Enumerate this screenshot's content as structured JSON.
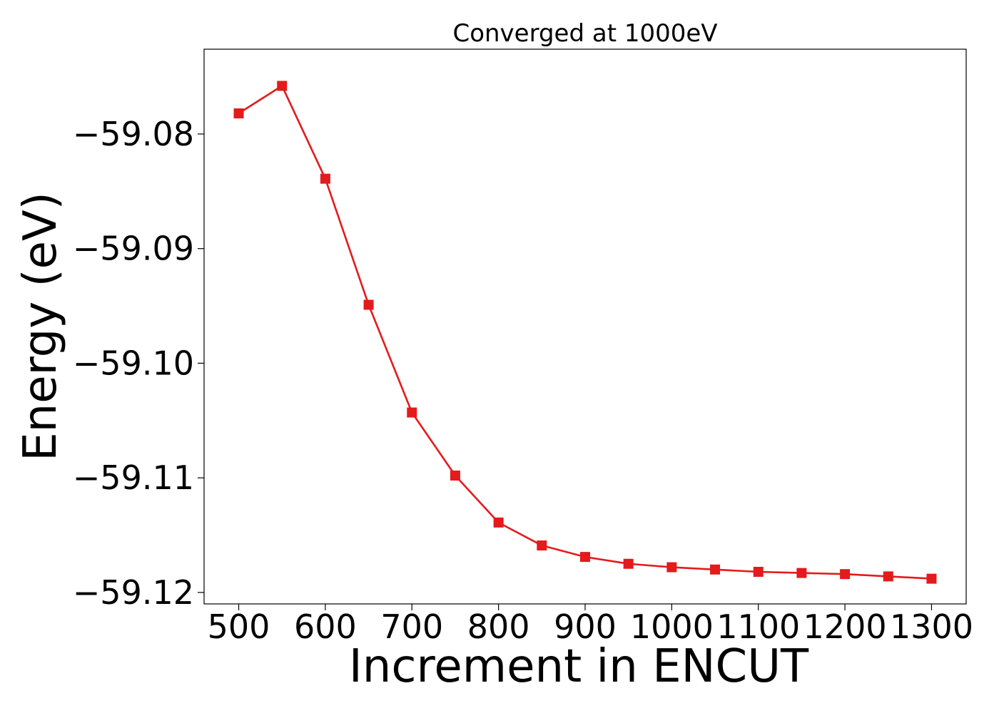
{
  "chart_data": {
    "type": "line",
    "title": "Converged at 1000eV",
    "xlabel": "Increment in ENCUT",
    "ylabel": "Energy (eV)",
    "xlim": [
      460,
      1340
    ],
    "ylim": [
      -59.121,
      -59.0726
    ],
    "xticks": [
      500,
      600,
      700,
      800,
      900,
      1000,
      1100,
      1200,
      1300
    ],
    "xtick_labels": [
      "500",
      "600",
      "700",
      "800",
      "900",
      "1000",
      "1100",
      "1200",
      "1300"
    ],
    "yticks": [
      -59.08,
      -59.09,
      -59.1,
      -59.11,
      -59.12
    ],
    "ytick_labels": [
      "−59.08",
      "−59.09",
      "−59.10",
      "−59.11",
      "−59.12"
    ],
    "grid": false,
    "legend": "none",
    "series": [
      {
        "color": "#e41a1c",
        "marker": "square",
        "x": [
          500,
          550,
          600,
          650,
          700,
          750,
          800,
          850,
          900,
          950,
          1000,
          1050,
          1100,
          1150,
          1200,
          1250,
          1300
        ],
        "y": [
          -59.0782,
          -59.0758,
          -59.0839,
          -59.0949,
          -59.1043,
          -59.1098,
          -59.1139,
          -59.1159,
          -59.1169,
          -59.1175,
          -59.1178,
          -59.118,
          -59.1182,
          -59.1183,
          -59.1184,
          -59.1186,
          -59.1188
        ]
      }
    ]
  }
}
